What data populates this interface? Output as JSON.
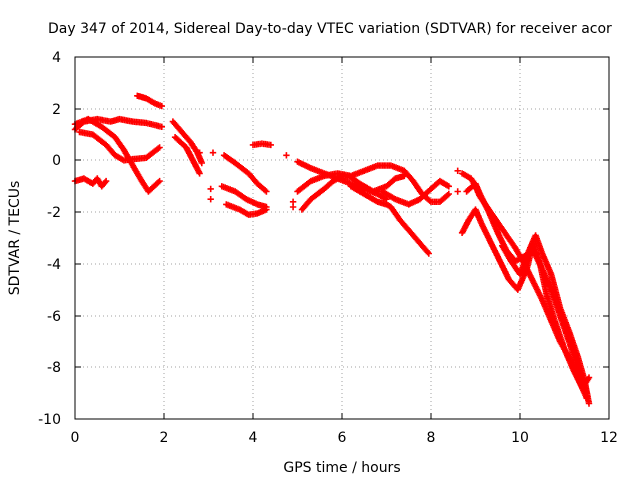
{
  "chart_data": {
    "type": "scatter",
    "title": "Day 347 of 2014, Sidereal Day-to-day VTEC variation (SDTVAR) for receiver acor",
    "xlabel": "GPS time / hours",
    "ylabel": "SDTVAR / TECUs",
    "xlim": [
      0,
      12
    ],
    "ylim": [
      -10,
      4
    ],
    "xticks": [
      "0",
      "2",
      "4",
      "6",
      "8",
      "10",
      "12"
    ],
    "yticks": [
      "4",
      "2",
      "0",
      "-2",
      "-4",
      "-6",
      "-8",
      "-10"
    ],
    "grid": true,
    "marker": "+",
    "color": "#ff0000",
    "series": [
      {
        "name": "trace-a",
        "points": [
          [
            0.0,
            1.2
          ],
          [
            0.2,
            1.5
          ],
          [
            0.5,
            1.6
          ],
          [
            0.8,
            1.5
          ],
          [
            1.0,
            1.6
          ],
          [
            1.3,
            1.5
          ],
          [
            1.6,
            1.45
          ],
          [
            1.95,
            1.3
          ]
        ]
      },
      {
        "name": "trace-b",
        "points": [
          [
            0.0,
            1.4
          ],
          [
            0.3,
            1.6
          ],
          [
            0.6,
            1.3
          ],
          [
            0.9,
            0.9
          ],
          [
            1.1,
            0.4
          ],
          [
            1.3,
            -0.2
          ],
          [
            1.5,
            -0.8
          ],
          [
            1.65,
            -1.2
          ],
          [
            1.9,
            -0.8
          ]
        ]
      },
      {
        "name": "trace-c",
        "points": [
          [
            0.1,
            1.1
          ],
          [
            0.4,
            1.0
          ],
          [
            0.7,
            0.6
          ],
          [
            0.9,
            0.2
          ],
          [
            1.1,
            0.0
          ],
          [
            1.3,
            0.05
          ],
          [
            1.6,
            0.1
          ],
          [
            1.9,
            0.5
          ]
        ]
      },
      {
        "name": "trace-d",
        "points": [
          [
            0.0,
            -0.8
          ],
          [
            0.2,
            -0.7
          ],
          [
            0.4,
            -0.9
          ],
          [
            0.5,
            -0.7
          ],
          [
            0.6,
            -1.0
          ],
          [
            0.7,
            -0.8
          ]
        ]
      },
      {
        "name": "trace-e",
        "points": [
          [
            1.4,
            2.5
          ],
          [
            1.6,
            2.4
          ],
          [
            1.8,
            2.2
          ],
          [
            1.95,
            2.1
          ]
        ]
      },
      {
        "name": "trace-f",
        "points": [
          [
            2.2,
            1.5
          ],
          [
            2.4,
            1.1
          ],
          [
            2.6,
            0.7
          ],
          [
            2.75,
            0.3
          ],
          [
            2.85,
            -0.1
          ]
        ]
      },
      {
        "name": "trace-g",
        "points": [
          [
            2.25,
            0.9
          ],
          [
            2.5,
            0.5
          ],
          [
            2.65,
            0.0
          ],
          [
            2.8,
            -0.5
          ]
        ]
      },
      {
        "name": "trace-h",
        "points": [
          [
            3.35,
            0.2
          ],
          [
            3.6,
            -0.1
          ],
          [
            3.9,
            -0.5
          ],
          [
            4.1,
            -0.9
          ],
          [
            4.3,
            -1.2
          ]
        ]
      },
      {
        "name": "trace-i",
        "points": [
          [
            3.3,
            -1.0
          ],
          [
            3.6,
            -1.2
          ],
          [
            3.85,
            -1.5
          ],
          [
            4.1,
            -1.7
          ],
          [
            4.3,
            -1.8
          ]
        ]
      },
      {
        "name": "trace-j",
        "points": [
          [
            3.4,
            -1.7
          ],
          [
            3.7,
            -1.9
          ],
          [
            3.9,
            -2.1
          ],
          [
            4.1,
            -2.05
          ],
          [
            4.3,
            -1.9
          ]
        ]
      },
      {
        "name": "trace-k",
        "points": [
          [
            4.0,
            0.6
          ],
          [
            4.2,
            0.65
          ],
          [
            4.4,
            0.6
          ]
        ]
      },
      {
        "name": "trace-l",
        "points": [
          [
            5.0,
            -0.05
          ],
          [
            5.3,
            -0.3
          ],
          [
            5.6,
            -0.5
          ],
          [
            5.9,
            -0.7
          ],
          [
            6.2,
            -0.9
          ],
          [
            6.5,
            -1.1
          ],
          [
            6.8,
            -1.3
          ],
          [
            7.0,
            -1.5
          ]
        ]
      },
      {
        "name": "trace-m",
        "points": [
          [
            5.0,
            -1.2
          ],
          [
            5.3,
            -0.8
          ],
          [
            5.6,
            -0.6
          ],
          [
            5.9,
            -0.5
          ],
          [
            6.2,
            -0.6
          ],
          [
            6.5,
            -0.4
          ],
          [
            6.8,
            -0.2
          ],
          [
            7.1,
            -0.2
          ],
          [
            7.4,
            -0.4
          ],
          [
            7.6,
            -0.8
          ],
          [
            7.8,
            -1.3
          ],
          [
            8.0,
            -1.6
          ],
          [
            8.2,
            -1.6
          ],
          [
            8.4,
            -1.3
          ]
        ]
      },
      {
        "name": "trace-n",
        "points": [
          [
            5.1,
            -1.9
          ],
          [
            5.3,
            -1.5
          ],
          [
            5.6,
            -1.1
          ],
          [
            5.8,
            -0.8
          ],
          [
            6.0,
            -0.6
          ],
          [
            6.2,
            -0.65
          ],
          [
            6.4,
            -0.9
          ],
          [
            6.7,
            -1.2
          ],
          [
            7.0,
            -1.0
          ],
          [
            7.2,
            -0.7
          ],
          [
            7.4,
            -0.6
          ]
        ]
      },
      {
        "name": "trace-o",
        "points": [
          [
            6.2,
            -1.0
          ],
          [
            6.5,
            -1.3
          ],
          [
            6.8,
            -1.6
          ],
          [
            7.0,
            -1.7
          ],
          [
            7.1,
            -1.8
          ],
          [
            7.3,
            -2.3
          ],
          [
            7.5,
            -2.7
          ],
          [
            7.7,
            -3.1
          ],
          [
            7.95,
            -3.6
          ]
        ]
      },
      {
        "name": "trace-p",
        "points": [
          [
            6.9,
            -1.2
          ],
          [
            7.2,
            -1.5
          ],
          [
            7.5,
            -1.7
          ],
          [
            7.75,
            -1.5
          ],
          [
            8.0,
            -1.1
          ],
          [
            8.2,
            -0.8
          ],
          [
            8.4,
            -1.0
          ]
        ]
      },
      {
        "name": "trace-q",
        "points": [
          [
            8.7,
            -0.5
          ],
          [
            8.9,
            -0.7
          ],
          [
            9.0,
            -1.0
          ],
          [
            9.1,
            -1.4
          ],
          [
            9.3,
            -1.9
          ],
          [
            9.5,
            -2.4
          ],
          [
            9.7,
            -2.9
          ],
          [
            9.9,
            -3.4
          ],
          [
            10.1,
            -4.0
          ],
          [
            10.3,
            -4.7
          ],
          [
            10.5,
            -5.4
          ],
          [
            10.7,
            -6.2
          ],
          [
            10.9,
            -7.0
          ],
          [
            11.1,
            -7.6
          ],
          [
            11.3,
            -8.4
          ],
          [
            11.5,
            -9.2
          ]
        ]
      },
      {
        "name": "trace-r",
        "points": [
          [
            8.7,
            -2.8
          ],
          [
            8.85,
            -2.3
          ],
          [
            9.0,
            -1.9
          ],
          [
            9.15,
            -2.5
          ],
          [
            9.35,
            -3.2
          ],
          [
            9.55,
            -3.9
          ],
          [
            9.75,
            -4.6
          ],
          [
            9.95,
            -5.0
          ],
          [
            10.15,
            -4.2
          ],
          [
            10.3,
            -3.2
          ],
          [
            10.45,
            -4.0
          ],
          [
            10.6,
            -5.2
          ],
          [
            10.8,
            -6.3
          ],
          [
            11.0,
            -7.3
          ],
          [
            11.2,
            -8.1
          ],
          [
            11.4,
            -8.8
          ],
          [
            11.55,
            -8.4
          ]
        ]
      },
      {
        "name": "trace-s",
        "points": [
          [
            8.8,
            -1.2
          ],
          [
            9.0,
            -0.9
          ],
          [
            9.1,
            -1.3
          ],
          [
            9.3,
            -2.0
          ],
          [
            9.5,
            -2.8
          ],
          [
            9.7,
            -3.5
          ],
          [
            9.9,
            -3.9
          ],
          [
            10.1,
            -3.7
          ],
          [
            10.3,
            -3.5
          ],
          [
            10.5,
            -4.2
          ],
          [
            10.7,
            -5.0
          ],
          [
            10.9,
            -6.0
          ],
          [
            11.1,
            -7.0
          ],
          [
            11.3,
            -8.0
          ],
          [
            11.5,
            -9.0
          ]
        ]
      },
      {
        "name": "trace-t",
        "points": [
          [
            9.6,
            -3.3
          ],
          [
            9.8,
            -3.9
          ],
          [
            10.0,
            -4.4
          ],
          [
            10.2,
            -3.5
          ],
          [
            10.35,
            -2.9
          ],
          [
            10.5,
            -3.6
          ],
          [
            10.7,
            -4.4
          ],
          [
            10.9,
            -5.7
          ],
          [
            11.1,
            -6.6
          ],
          [
            11.3,
            -7.6
          ],
          [
            11.45,
            -8.5
          ],
          [
            11.55,
            -9.4
          ]
        ]
      },
      {
        "name": "isolated",
        "points": [
          [
            2.8,
            0.3
          ],
          [
            3.1,
            0.3
          ],
          [
            3.05,
            -1.1
          ],
          [
            3.05,
            -1.5
          ],
          [
            4.9,
            -1.6
          ],
          [
            4.9,
            -1.8
          ],
          [
            4.75,
            0.2
          ],
          [
            8.6,
            -0.4
          ],
          [
            8.6,
            -1.2
          ]
        ]
      }
    ]
  }
}
